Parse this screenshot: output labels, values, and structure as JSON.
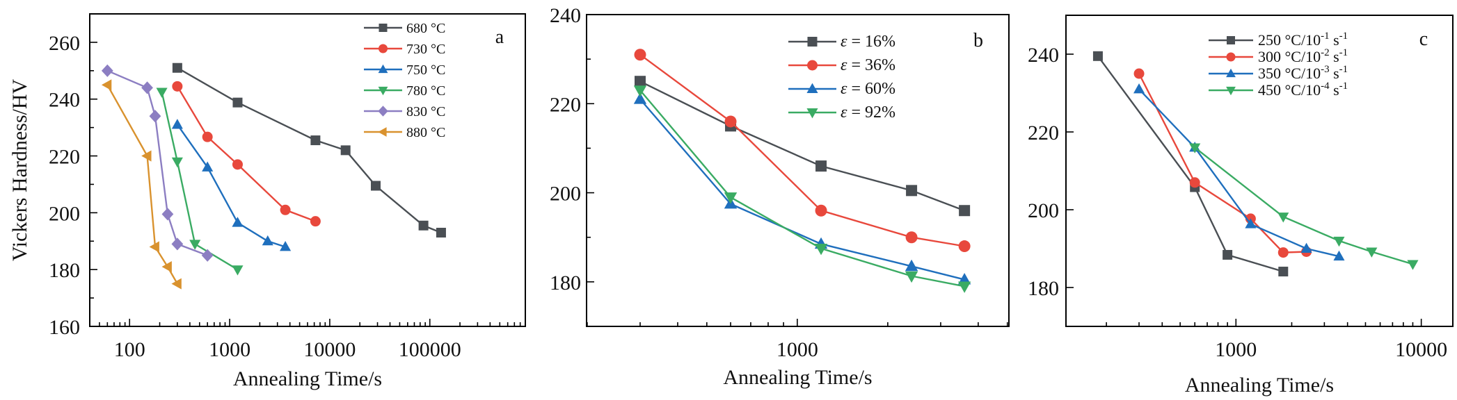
{
  "chart_data": [
    {
      "type": "line",
      "panel_label": "a",
      "xlabel": "Annealing Time/s",
      "ylabel": "Vickers Hardness/HV",
      "xscale": "log",
      "xlim": [
        40,
        900000
      ],
      "ylim": [
        160,
        270
      ],
      "xticks": [
        100,
        1000,
        10000,
        100000
      ],
      "xtick_labels": [
        "100",
        "1000",
        "10000",
        "100000"
      ],
      "yticks": [
        160,
        180,
        200,
        220,
        240,
        260
      ],
      "ytick_labels": [
        "160",
        "180",
        "200",
        "220",
        "240",
        "260"
      ],
      "legend_position": "top-right",
      "grid": false,
      "series": [
        {
          "name": "680 °C",
          "color": "#4a4f54",
          "marker": "square",
          "x": [
            300,
            1200,
            7200,
            14400,
            28800,
            86400,
            129600
          ],
          "y": [
            251,
            238.8,
            225.5,
            222,
            209.5,
            195.5,
            193
          ]
        },
        {
          "name": "730 °C",
          "color": "#e8483c",
          "marker": "circle",
          "x": [
            300,
            600,
            1200,
            3600,
            7200
          ],
          "y": [
            244.5,
            226.7,
            217,
            201,
            197
          ]
        },
        {
          "name": "750 °C",
          "color": "#1f6fbd",
          "marker": "triangle-up",
          "x": [
            300,
            600,
            1200,
            2400,
            3600
          ],
          "y": [
            231,
            216,
            196.5,
            190,
            188
          ]
        },
        {
          "name": "780 °C",
          "color": "#3aab63",
          "marker": "triangle-down",
          "x": [
            210,
            300,
            450,
            1200
          ],
          "y": [
            242.5,
            218,
            189,
            180
          ]
        },
        {
          "name": "830 °C",
          "color": "#8c7ec2",
          "marker": "diamond",
          "x": [
            60,
            150,
            180,
            240,
            300,
            600
          ],
          "y": [
            250,
            244,
            234,
            199.5,
            189,
            185
          ]
        },
        {
          "name": "880 °C",
          "color": "#d9922e",
          "marker": "triangle-left",
          "x": [
            60,
            150,
            180,
            240,
            300
          ],
          "y": [
            245,
            220,
            188,
            181,
            175
          ]
        }
      ]
    },
    {
      "type": "line",
      "panel_label": "b",
      "xlabel": "Annealing  Time/s",
      "ylabel": "",
      "xscale": "log",
      "xlim": [
        199,
        5060
      ],
      "ylim": [
        170,
        240
      ],
      "xticks": [
        1000
      ],
      "xtick_labels": [
        "1000"
      ],
      "yticks": [
        180,
        200,
        220,
        240
      ],
      "ytick_labels": [
        "180",
        "200",
        "220",
        "240"
      ],
      "legend_position": "top-right",
      "grid": false,
      "series": [
        {
          "name": "ε = 16%",
          "color": "#4a4f54",
          "marker": "square",
          "x": [
            300,
            600,
            1200,
            2400,
            3600
          ],
          "y": [
            225,
            215,
            206,
            200.5,
            196
          ]
        },
        {
          "name": "ε = 36%",
          "color": "#e8483c",
          "marker": "circle",
          "x": [
            300,
            600,
            1200,
            2400,
            3600
          ],
          "y": [
            231,
            216,
            196,
            190,
            188
          ]
        },
        {
          "name": "ε = 60%",
          "color": "#1f6fbd",
          "marker": "triangle-up",
          "x": [
            300,
            600,
            1200,
            2400,
            3600
          ],
          "y": [
            221,
            197.5,
            188.5,
            183.5,
            180.5
          ]
        },
        {
          "name": "ε = 92%",
          "color": "#3aab63",
          "marker": "triangle-down",
          "x": [
            300,
            600,
            1200,
            2400,
            3600
          ],
          "y": [
            223,
            199,
            187.5,
            181.3,
            179
          ]
        }
      ]
    },
    {
      "type": "line",
      "panel_label": "c",
      "xlabel": "Annealing Time/s",
      "ylabel": "",
      "xscale": "log",
      "xlim": [
        121,
        14800
      ],
      "ylim": [
        170,
        250
      ],
      "xticks": [
        1000,
        10000
      ],
      "xtick_labels": [
        "1000",
        "10000"
      ],
      "yticks": [
        180,
        200,
        220,
        240
      ],
      "ytick_labels": [
        "180",
        "200",
        "220",
        "240"
      ],
      "legend_position": "top-right",
      "grid": false,
      "series": [
        {
          "name": "250 °C/10-1 s-1",
          "label_parts": [
            "250 °C/10",
            "-1",
            " s",
            "-1"
          ],
          "color": "#4a4f54",
          "marker": "square",
          "x": [
            180,
            600,
            900,
            1800
          ],
          "y": [
            239.5,
            205.8,
            188.4,
            184.1
          ]
        },
        {
          "name": "300 °C/10-2 s-1",
          "label_parts": [
            "300 °C/10",
            "-2",
            " s",
            "-1"
          ],
          "color": "#e8483c",
          "marker": "circle",
          "x": [
            300,
            600,
            1200,
            1800,
            2400
          ],
          "y": [
            235,
            207,
            197.7,
            189,
            189.2
          ]
        },
        {
          "name": "350 °C/10-3 s-1",
          "label_parts": [
            "350 °C/10",
            "-3",
            " s",
            "-1"
          ],
          "color": "#1f6fbd",
          "marker": "triangle-up",
          "x": [
            300,
            600,
            1200,
            2400,
            3600
          ],
          "y": [
            231,
            216,
            196.3,
            190,
            188
          ]
        },
        {
          "name": "450 °C/10-4 s-1",
          "label_parts": [
            "450 °C/10",
            "-4",
            " s",
            "-1"
          ],
          "color": "#3aab63",
          "marker": "triangle-down",
          "x": [
            600,
            1800,
            3600,
            5400,
            9000
          ],
          "y": [
            216,
            198.2,
            192,
            189.2,
            186
          ]
        }
      ]
    }
  ]
}
